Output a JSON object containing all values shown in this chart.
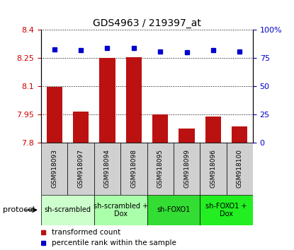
{
  "title": "GDS4963 / 219397_at",
  "samples": [
    "GSM918093",
    "GSM918097",
    "GSM918094",
    "GSM918098",
    "GSM918095",
    "GSM918099",
    "GSM918096",
    "GSM918100"
  ],
  "bar_values": [
    8.095,
    7.965,
    8.25,
    8.255,
    7.95,
    7.875,
    7.94,
    7.885
  ],
  "percentile_values": [
    83,
    82,
    84,
    84,
    81,
    80,
    82,
    81
  ],
  "ylim_left": [
    7.8,
    8.4
  ],
  "ylim_right": [
    0,
    100
  ],
  "yticks_left": [
    7.8,
    7.95,
    8.1,
    8.25,
    8.4
  ],
  "yticks_right": [
    0,
    25,
    50,
    75,
    100
  ],
  "ytick_labels_left": [
    "7.8",
    "7.95",
    "8.1",
    "8.25",
    "8.4"
  ],
  "ytick_labels_right": [
    "0",
    "25",
    "50",
    "75",
    "100%"
  ],
  "bar_color": "#bb1111",
  "percentile_color": "#0000cc",
  "bar_width": 0.6,
  "protocols": [
    {
      "label": "sh-scrambled",
      "start": 0,
      "end": 2,
      "color": "#ccffcc"
    },
    {
      "label": "sh-scrambled +\nDox",
      "start": 2,
      "end": 4,
      "color": "#aaffaa"
    },
    {
      "label": "sh-FOXO1",
      "start": 4,
      "end": 6,
      "color": "#33dd33"
    },
    {
      "label": "sh-FOXO1 +\nDox",
      "start": 6,
      "end": 8,
      "color": "#22ee22"
    }
  ],
  "protocol_label": "protocol",
  "legend_bar_label": "transformed count",
  "legend_pct_label": "percentile rank within the sample",
  "bg_color": "#ffffff",
  "tick_color_left": "#cc0000",
  "tick_color_right": "#0000cc",
  "xlabel_bg": "#d0d0d0",
  "figsize": [
    4.15,
    3.54
  ],
  "dpi": 100
}
